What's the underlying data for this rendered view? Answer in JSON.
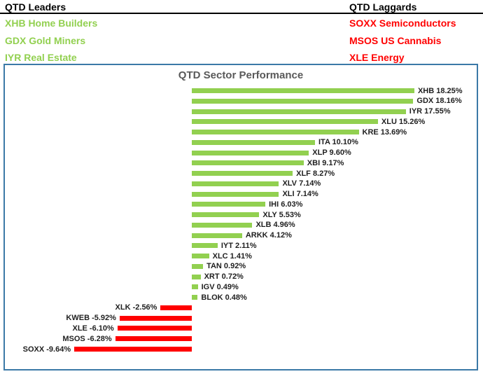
{
  "leaders": {
    "title": "QTD Leaders",
    "items": [
      "XHB Home Builders",
      "GDX Gold Miners",
      "IYR Real Estate"
    ]
  },
  "laggards": {
    "title": "QTD Laggards",
    "items": [
      "SOXX Semiconductors",
      "MSOS US Cannabis",
      "XLE Energy"
    ]
  },
  "colors": {
    "positive_bar": "#92D050",
    "negative_bar": "#FF0000",
    "leaders_text": "#92D050",
    "laggards_text": "#FF0000",
    "chart_border": "#3B79A7",
    "chart_title_text": "#595959",
    "bar_label_text": "#1F1F1F",
    "header_rule": "#000000"
  },
  "chart_data": {
    "type": "bar",
    "orientation": "horizontal",
    "title": "QTD Sector Performance",
    "categories": [
      "XHB",
      "GDX",
      "IYR",
      "XLU",
      "KRE",
      "ITA",
      "XLP",
      "XBI",
      "XLF",
      "XLV",
      "XLI",
      "IHI",
      "XLY",
      "XLB",
      "ARKK",
      "IYT",
      "XLC",
      "TAN",
      "XRT",
      "IGV",
      "BLOK",
      "XLK",
      "KWEB",
      "XLE",
      "MSOS",
      "SOXX"
    ],
    "values": [
      18.25,
      18.16,
      17.55,
      15.26,
      13.69,
      10.1,
      9.6,
      9.17,
      8.27,
      7.14,
      7.14,
      6.03,
      5.53,
      4.96,
      4.12,
      2.11,
      1.41,
      0.92,
      0.72,
      0.49,
      0.48,
      -2.56,
      -5.92,
      -6.1,
      -6.28,
      -9.64
    ],
    "labels": [
      "XHB 18.25%",
      "GDX 18.16%",
      "IYR 17.55%",
      "XLU 15.26%",
      "KRE 13.69%",
      "ITA 10.10%",
      "XLP 9.60%",
      "XBI 9.17%",
      "XLF 8.27%",
      "XLV 7.14%",
      "XLI 7.14%",
      "IHI 6.03%",
      "XLY 5.53%",
      "XLB 4.96%",
      "ARKK 4.12%",
      "IYT 2.11%",
      "XLC 1.41%",
      "TAN 0.92%",
      "XRT 0.72%",
      "IGV 0.49%",
      "BLOK 0.48%",
      "XLK -2.56%",
      "KWEB -5.92%",
      "XLE -6.10%",
      "MSOS -6.28%",
      "SOXX -9.64%"
    ],
    "value_unit": "%",
    "xlim": [
      -15.33,
      23.36
    ],
    "grid": false,
    "legend": "none",
    "label_position": "outside-end"
  }
}
